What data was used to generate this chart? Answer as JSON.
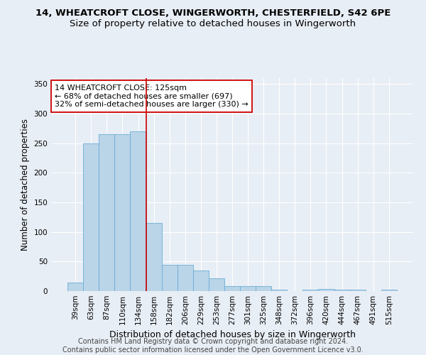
{
  "title1": "14, WHEATCROFT CLOSE, WINGERWORTH, CHESTERFIELD, S42 6PE",
  "title2": "Size of property relative to detached houses in Wingerworth",
  "xlabel": "Distribution of detached houses by size in Wingerworth",
  "ylabel": "Number of detached properties",
  "categories": [
    "39sqm",
    "63sqm",
    "87sqm",
    "110sqm",
    "134sqm",
    "158sqm",
    "182sqm",
    "206sqm",
    "229sqm",
    "253sqm",
    "277sqm",
    "301sqm",
    "325sqm",
    "348sqm",
    "372sqm",
    "396sqm",
    "420sqm",
    "444sqm",
    "467sqm",
    "491sqm",
    "515sqm"
  ],
  "values": [
    15,
    250,
    265,
    265,
    270,
    115,
    45,
    45,
    35,
    22,
    8,
    8,
    8,
    2,
    0,
    3,
    4,
    3,
    2,
    0,
    2
  ],
  "bar_color": "#bad4e8",
  "bar_edge_color": "#6aaed6",
  "red_line_index": 4,
  "annotation_text": "14 WHEATCROFT CLOSE: 125sqm\n← 68% of detached houses are smaller (697)\n32% of semi-detached houses are larger (330) →",
  "annotation_box_color": "white",
  "annotation_box_edge": "#cc0000",
  "ylim": [
    0,
    360
  ],
  "yticks": [
    0,
    50,
    100,
    150,
    200,
    250,
    300,
    350
  ],
  "footer1": "Contains HM Land Registry data © Crown copyright and database right 2024.",
  "footer2": "Contains public sector information licensed under the Open Government Licence v3.0.",
  "bg_color": "#e8eef5",
  "plot_bg_color": "#e8eef5",
  "grid_color": "#ffffff",
  "title1_fontsize": 9.5,
  "title2_fontsize": 9.5,
  "tick_fontsize": 7.5,
  "xlabel_fontsize": 9,
  "ylabel_fontsize": 8.5,
  "footer_fontsize": 7
}
